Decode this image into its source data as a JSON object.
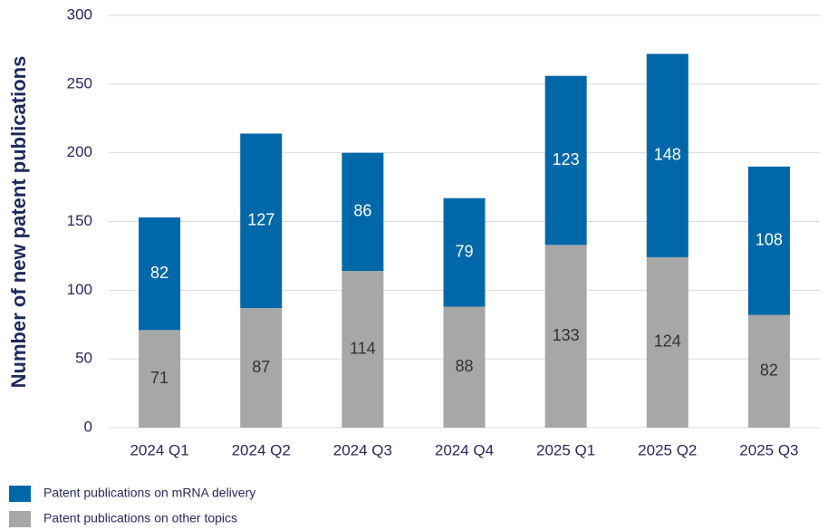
{
  "chart_data": {
    "type": "stacked_bar",
    "y_label": "Number of new patent publications",
    "categories": [
      "2024 Q1",
      "2024 Q2",
      "2024 Q3",
      "2024 Q4",
      "2025 Q1",
      "2025 Q2",
      "2025 Q3"
    ],
    "series": [
      {
        "name": "Patent publications on mRNA delivery",
        "color": "#0068a8",
        "values": [
          82,
          127,
          86,
          79,
          123,
          148,
          108
        ]
      },
      {
        "name": "Patent publications on other topics",
        "color": "#a6a8a8",
        "values": [
          71,
          87,
          114,
          88,
          133,
          124,
          82
        ]
      }
    ],
    "ylim": [
      0,
      300
    ],
    "yticks": [
      0,
      50,
      100,
      150,
      200,
      250,
      300
    ],
    "grid": true,
    "legend": "bottom-left"
  }
}
